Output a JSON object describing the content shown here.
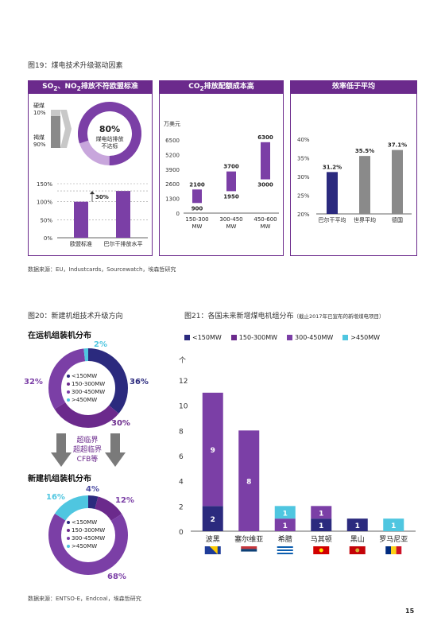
{
  "fig19": {
    "title": "图19：煤电技术升级驱动因素",
    "panels": [
      {
        "title_html": "SO<sub>2</sub>、NO<sub>2</sub>排放不符欧盟标准"
      },
      {
        "title_html": "CO<sub>2</sub>排放配额成本高"
      },
      {
        "title_html": "效率低于平均"
      }
    ],
    "panel1": {
      "hard_coal": "硬煤",
      "hard_coal_pct": "10%",
      "lignite": "褐煤",
      "lignite_pct": "90%",
      "donut_value": "80%",
      "donut_text1": "煤电站排放",
      "donut_text2": "不达标",
      "yticks": [
        "150%",
        "100%",
        "50%",
        "0%"
      ],
      "gap_label": "30%",
      "categories": [
        "欧盟标准",
        "巴尔干排放水平"
      ],
      "values": [
        100,
        130
      ]
    },
    "panel2": {
      "unit": "万美元",
      "yticks": [
        "6500",
        "5200",
        "3900",
        "2600",
        "1300",
        "0"
      ],
      "categories": [
        "150-300\nMW",
        "300-450\nMW",
        "450-600\nMW"
      ],
      "ranges": [
        {
          "low": 900,
          "high": 2100,
          "low_label": "900",
          "high_label": "2100"
        },
        {
          "low": 1950,
          "high": 3700,
          "low_label": "1950",
          "high_label": "3700"
        },
        {
          "low": 3000,
          "high": 6300,
          "low_label": "3000",
          "high_label": "6300"
        }
      ]
    },
    "panel3": {
      "yticks": [
        "40%",
        "35%",
        "30%",
        "25%",
        "20%"
      ],
      "categories": [
        "巴尔干平均",
        "世界平均",
        "德国"
      ],
      "values": [
        31.2,
        35.5,
        37.1
      ],
      "labels": [
        "31.2%",
        "35.5%",
        "37.1%"
      ]
    },
    "source": "数据来源：EU，Industcards，Sourcewatch，埃森哲研究"
  },
  "fig20": {
    "title": "图20：新建机组技术升级方向",
    "operating_title": "在运机组装机分布",
    "new_title": "新建机组装机分布",
    "arrow_text": [
      "超临界",
      "超超临界",
      "CFB等"
    ],
    "legend": [
      "<150MW",
      "150-300MW",
      "300-450MW",
      ">450MW"
    ],
    "operating": {
      "values": [
        36,
        30,
        32,
        2
      ],
      "labels": [
        "36%",
        "30%",
        "32%",
        "2%"
      ]
    },
    "new": {
      "values": [
        4,
        12,
        68,
        16
      ],
      "labels": [
        "4%",
        "12%",
        "68%",
        "16%"
      ]
    },
    "source": "数据来源：ENTSO-E，Endcoal，埃森哲研究"
  },
  "fig21": {
    "title": "图21：各国未来新增煤电机组分布",
    "subtitle": "（截止2017年已宣布的新增煤电项目）",
    "legend": [
      "<150MW",
      "150-300MW",
      "300-450MW",
      ">450MW"
    ],
    "unit": "个",
    "yticks": [
      "12",
      "10",
      "8",
      "6",
      "4",
      "2",
      "0"
    ]
  },
  "colors": {
    "navy": "#2b2a7e",
    "purple": "#7b3fa6",
    "dark_purple": "#6b2a8c",
    "cyan": "#4fc6e0",
    "grey": "#8a8a8a",
    "light_purple": "#c8a6dc"
  },
  "chart_data": [
    {
      "type": "bar",
      "title": "效率低于平均",
      "categories": [
        "巴尔干平均",
        "世界平均",
        "德国"
      ],
      "values": [
        31.2,
        35.5,
        37.1
      ],
      "ylim": [
        20,
        40
      ]
    },
    {
      "type": "bar",
      "title": "CO2排放配额成本高",
      "ylabel": "万美元",
      "categories": [
        "150-300 MW",
        "300-450 MW",
        "450-600 MW"
      ],
      "series": [
        {
          "values": [
            900,
            1950,
            3000
          ]
        },
        {
          "values": [
            2100,
            3700,
            6300
          ]
        }
      ],
      "ylim": [
        0,
        6500
      ]
    },
    {
      "type": "bar",
      "categories": [
        "欧盟标准",
        "巴尔干排放水平"
      ],
      "values": [
        100,
        130
      ],
      "ylim": [
        0,
        150
      ]
    },
    {
      "type": "pie",
      "title": "在运机组装机分布",
      "categories": [
        "<150MW",
        "150-300MW",
        "300-450MW",
        ">450MW"
      ],
      "values": [
        36,
        30,
        32,
        2
      ]
    },
    {
      "type": "pie",
      "title": "新建机组装机分布",
      "categories": [
        "<150MW",
        "150-300MW",
        "300-450MW",
        ">450MW"
      ],
      "values": [
        4,
        12,
        68,
        16
      ]
    },
    {
      "type": "bar",
      "title": "图21：各国未来新增煤电机组分布",
      "ylabel": "个",
      "categories": [
        "波黑",
        "塞尔维亚",
        "希腊",
        "马其顿",
        "黑山",
        "罗马尼亚"
      ],
      "series": [
        {
          "name": "<150MW",
          "values": [
            2,
            0,
            0,
            1,
            1,
            0
          ]
        },
        {
          "name": "150-300MW",
          "values": [
            0,
            0,
            0,
            0,
            0,
            0
          ]
        },
        {
          "name": "300-450MW",
          "values": [
            9,
            8,
            1,
            1,
            0,
            0
          ]
        },
        {
          "name": ">450MW",
          "values": [
            0,
            0,
            1,
            0,
            0,
            1
          ]
        }
      ],
      "stack_labels": [
        [
          "2",
          "9"
        ],
        [
          "8"
        ],
        [
          "1",
          "1"
        ],
        [
          "1",
          "1"
        ],
        [
          "1"
        ],
        [
          "1"
        ]
      ],
      "ylim": [
        0,
        12
      ]
    }
  ],
  "page_number": "15"
}
